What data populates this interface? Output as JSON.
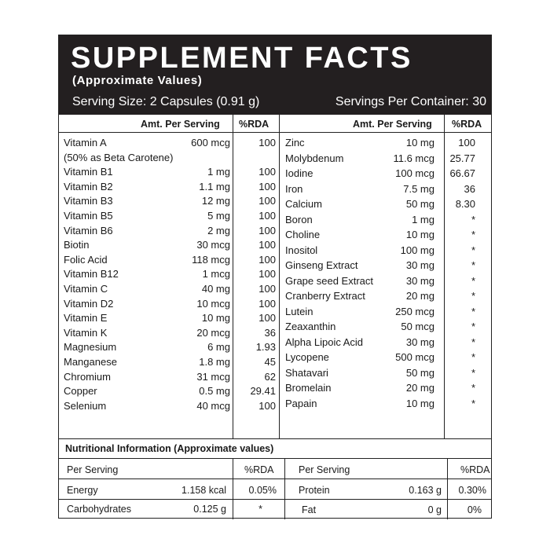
{
  "header": {
    "title": "SUPPLEMENT FACTS",
    "subtitle": "(Approximate Values)",
    "serving_size": "Serving Size: 2 Capsules  (0.91 g)",
    "servings_per_container": "Servings Per Container: 30"
  },
  "columns": {
    "amount": "Amt. Per Serving",
    "rda": "%RDA"
  },
  "left_rows": [
    {
      "name": "Vitamin A",
      "amount": "600 mcg",
      "rda": "100"
    },
    {
      "name": "(50% as Beta Carotene)",
      "amount": "",
      "rda": ""
    },
    {
      "name": "Vitamin B1",
      "amount": "1 mg",
      "rda": "100"
    },
    {
      "name": "Vitamin B2",
      "amount": "1.1 mg",
      "rda": "100"
    },
    {
      "name": "Vitamin B3",
      "amount": "12 mg",
      "rda": "100"
    },
    {
      "name": "Vitamin B5",
      "amount": "5 mg",
      "rda": "100"
    },
    {
      "name": "Vitamin B6",
      "amount": "2 mg",
      "rda": "100"
    },
    {
      "name": "Biotin",
      "amount": "30 mcg",
      "rda": "100"
    },
    {
      "name": "Folic Acid",
      "amount": "118 mcg",
      "rda": "100"
    },
    {
      "name": "Vitamin B12",
      "amount": "1 mcg",
      "rda": "100"
    },
    {
      "name": "Vitamin  C",
      "amount": "40  mg",
      "rda": "100"
    },
    {
      "name": "Vitamin D2",
      "amount": "10 mcg",
      "rda": "100"
    },
    {
      "name": "Vitamin E",
      "amount": "10 mg",
      "rda": "100"
    },
    {
      "name": "Vitamin K",
      "amount": "20 mcg",
      "rda": "36"
    },
    {
      "name": "Magnesium",
      "amount": "6 mg",
      "rda": "1.93"
    },
    {
      "name": "Manganese",
      "amount": "1.8 mg",
      "rda": "45"
    },
    {
      "name": "Chromium",
      "amount": "31 mcg",
      "rda": "62"
    },
    {
      "name": "Copper",
      "amount": "0.5 mg",
      "rda": "29.41"
    },
    {
      "name": "Selenium",
      "amount": "40 mcg",
      "rda": "100"
    }
  ],
  "right_rows": [
    {
      "name": "Zinc",
      "amount": "10 mg",
      "rda": "100"
    },
    {
      "name": "Molybdenum",
      "amount": "11.6 mcg",
      "rda": "25.77"
    },
    {
      "name": "Iodine",
      "amount": "100 mcg",
      "rda": "66.67"
    },
    {
      "name": "Iron",
      "amount": "7.5 mg",
      "rda": "36"
    },
    {
      "name": "Calcium",
      "amount": "50 mg",
      "rda": "8.30"
    },
    {
      "name": "Boron",
      "amount": "1 mg",
      "rda": "*"
    },
    {
      "name": "Choline",
      "amount": "10 mg",
      "rda": "*"
    },
    {
      "name": "Inositol",
      "amount": "100 mg",
      "rda": "*"
    },
    {
      "name": "Ginseng Extract",
      "amount": "30 mg",
      "rda": "*"
    },
    {
      "name": "Grape seed Extract",
      "amount": "30 mg",
      "rda": "*"
    },
    {
      "name": "Cranberry Extract",
      "amount": "20 mg",
      "rda": "*"
    },
    {
      "name": "Lutein",
      "amount": "250 mcg",
      "rda": "*"
    },
    {
      "name": "Zeaxanthin",
      "amount": "50 mcg",
      "rda": "*"
    },
    {
      "name": "Alpha Lipoic Acid",
      "amount": "30 mg",
      "rda": "*"
    },
    {
      "name": "Lycopene",
      "amount": "500 mcg",
      "rda": "*"
    },
    {
      "name": "Shatavari",
      "amount": "50 mg",
      "rda": "*"
    },
    {
      "name": "Bromelain",
      "amount": "20 mg",
      "rda": "*"
    },
    {
      "name": "Papain",
      "amount": "10 mg",
      "rda": "*"
    }
  ],
  "nutrition": {
    "title": "Nutritional Information (Approximate values)",
    "per_serving": "Per Serving",
    "rda": "%RDA",
    "left": [
      {
        "name": "Energy",
        "amount": "1.158 kcal",
        "rda": "0.05%"
      },
      {
        "name": "Carbohydrates",
        "amount": "0.125 g",
        "rda": "*"
      }
    ],
    "right": [
      {
        "name": "Protein",
        "amount": "0.163 g",
        "rda": "0.30%"
      },
      {
        "name": "Fat",
        "amount": "0 g",
        "rda": "0%"
      }
    ]
  }
}
